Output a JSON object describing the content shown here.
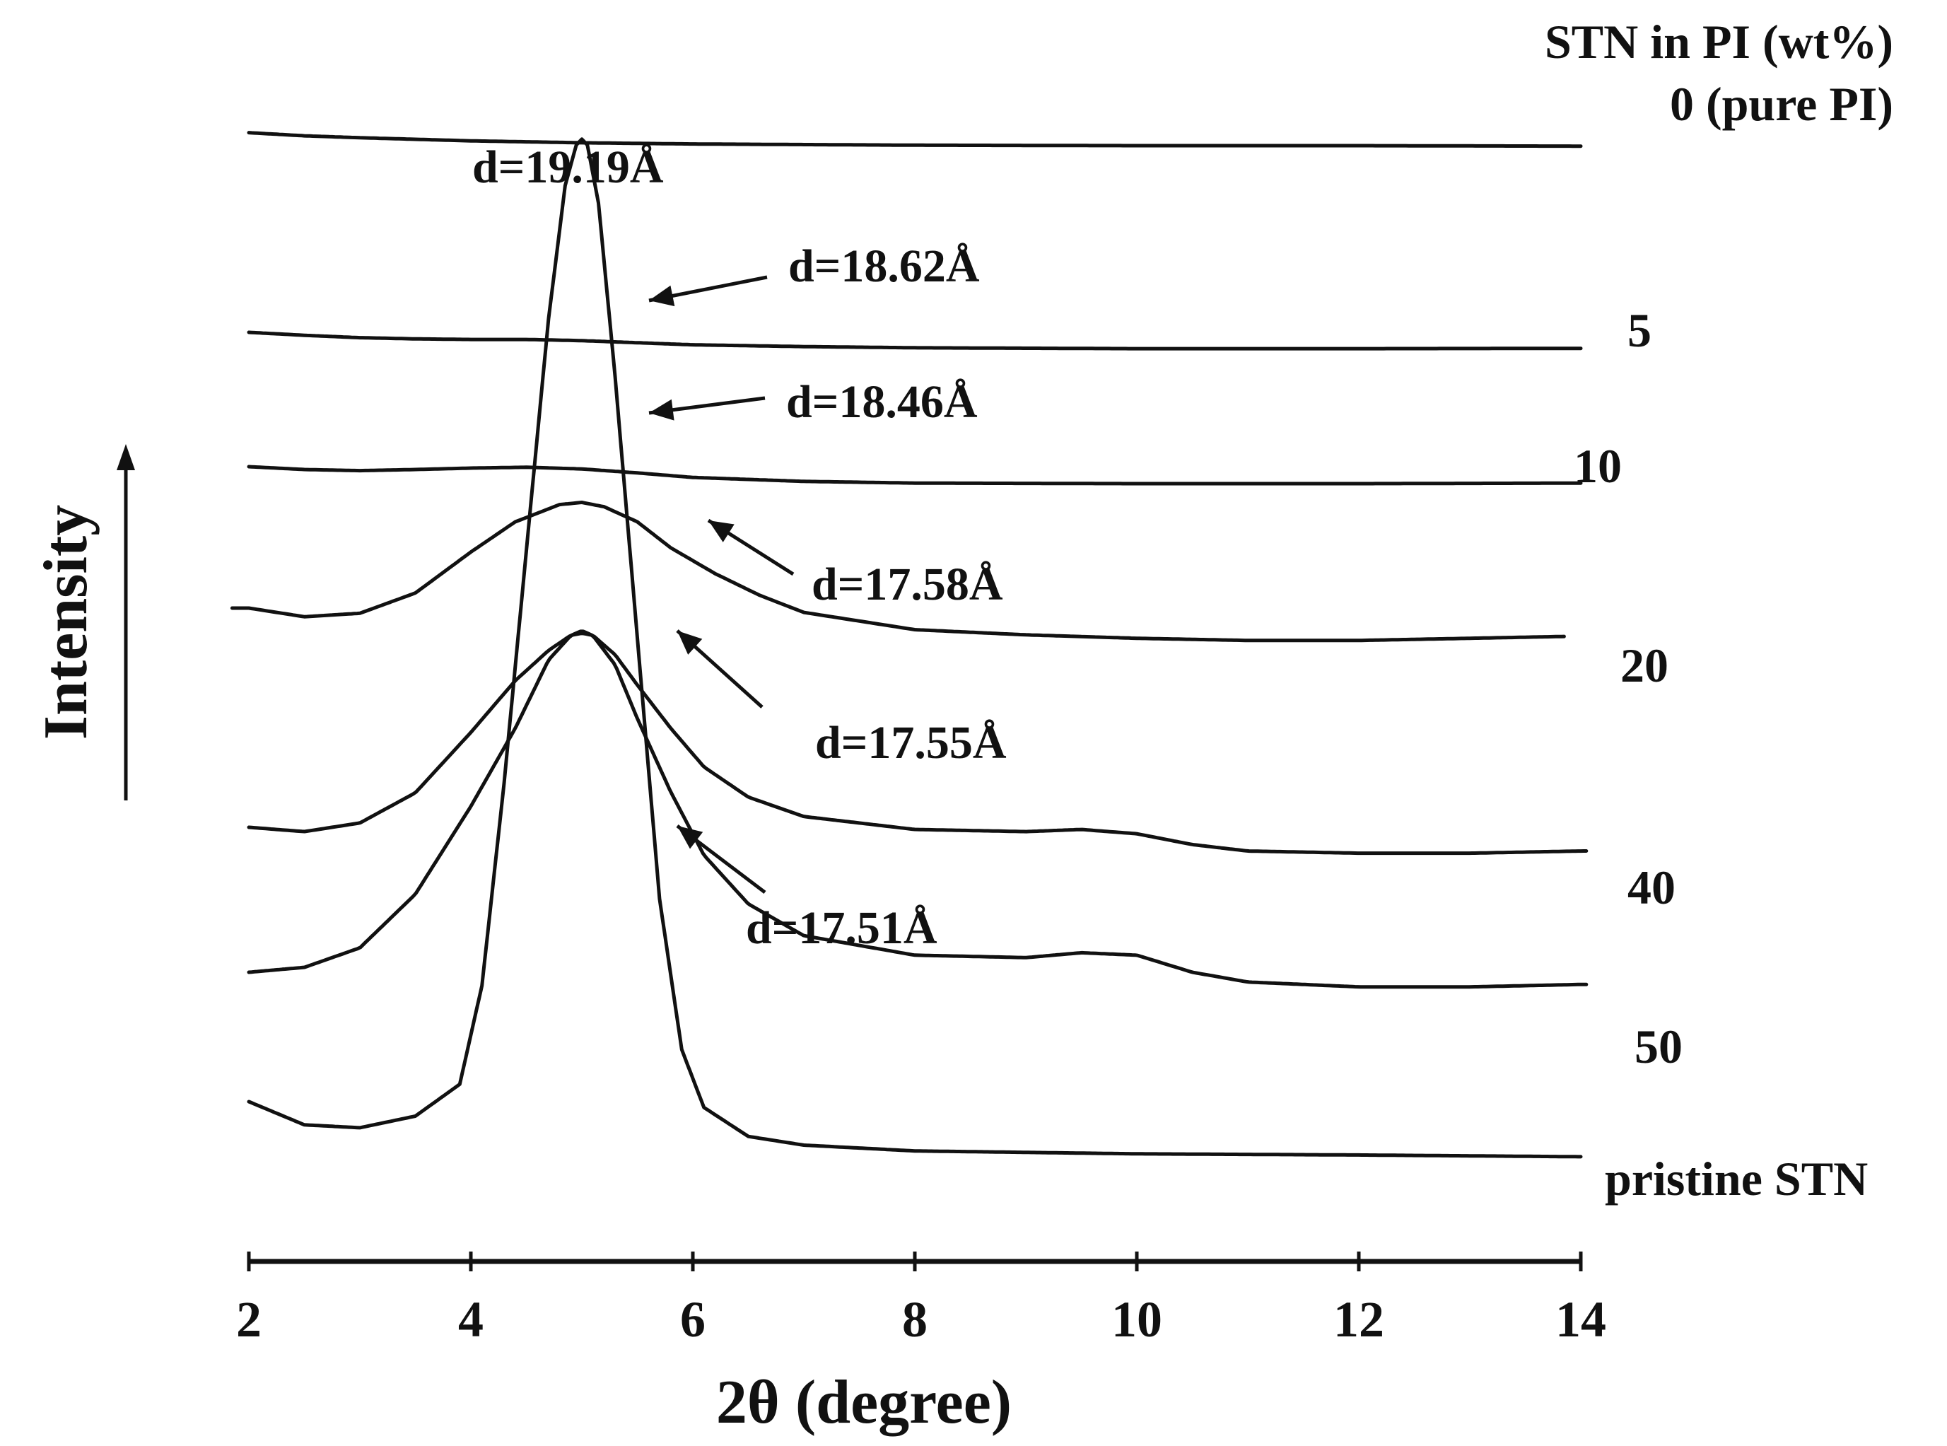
{
  "chart_data": {
    "type": "line",
    "title": "",
    "xlabel": "2θ (degree)",
    "ylabel": "Intensity",
    "xlim": [
      2,
      14
    ],
    "xticks": [
      2,
      4,
      6,
      8,
      10,
      12,
      14
    ],
    "grid": false,
    "legend_title": "STN in PI (wt%)",
    "series": [
      {
        "name": "0 (pure PI)",
        "x": [
          2.0,
          2.5,
          3,
          4,
          5,
          6,
          8,
          10,
          12,
          14
        ],
        "y": [
          1.04,
          0.91,
          0.83,
          0.7,
          0.62,
          0.57,
          0.52,
          0.5,
          0.5,
          0.48
        ]
      },
      {
        "name": "5",
        "x": [
          2.0,
          2.5,
          3,
          3.5,
          4,
          4.5,
          5,
          5.5,
          6,
          7,
          8,
          10,
          12,
          14
        ],
        "y": [
          1.0,
          0.9,
          0.82,
          0.78,
          0.76,
          0.76,
          0.72,
          0.65,
          0.58,
          0.52,
          0.48,
          0.45,
          0.45,
          0.46
        ]
      },
      {
        "name": "10",
        "x": [
          2.0,
          2.5,
          3,
          3.5,
          4,
          4.5,
          5,
          5.5,
          6,
          7,
          8,
          10,
          12,
          14
        ],
        "y": [
          1.0,
          0.9,
          0.86,
          0.9,
          0.95,
          0.98,
          0.92,
          0.78,
          0.62,
          0.48,
          0.42,
          0.4,
          0.4,
          0.42
        ]
      },
      {
        "name": "20",
        "x": [
          2.0,
          2.5,
          3.0,
          3.5,
          4.0,
          4.4,
          4.8,
          5.0,
          5.2,
          5.5,
          5.8,
          6.2,
          6.6,
          7.0,
          8.0,
          9.0,
          10.0,
          11.0,
          12.0,
          13.0,
          14.0
        ],
        "y": [
          1.0,
          0.8,
          0.88,
          1.35,
          2.3,
          3.0,
          3.4,
          3.45,
          3.35,
          3.0,
          2.4,
          1.8,
          1.3,
          0.9,
          0.5,
          0.38,
          0.3,
          0.25,
          0.25,
          0.3,
          0.35
        ]
      },
      {
        "name": "40",
        "x": [
          2.0,
          2.5,
          3.0,
          3.5,
          4.0,
          4.4,
          4.7,
          4.9,
          5.0,
          5.1,
          5.3,
          5.5,
          5.8,
          6.1,
          6.5,
          7.0,
          8.0,
          9.0,
          9.5,
          10.0,
          10.5,
          11.0,
          12.0,
          13.0,
          14.0
        ],
        "y": [
          1.0,
          0.9,
          1.1,
          1.8,
          3.2,
          4.4,
          5.1,
          5.45,
          5.5,
          5.45,
          5.0,
          4.3,
          3.3,
          2.4,
          1.7,
          1.25,
          0.95,
          0.9,
          0.95,
          0.85,
          0.6,
          0.45,
          0.4,
          0.4,
          0.45
        ]
      },
      {
        "name": "50",
        "x": [
          2.0,
          2.5,
          3.0,
          3.5,
          4.0,
          4.4,
          4.7,
          4.9,
          5.0,
          5.1,
          5.3,
          5.5,
          5.8,
          6.1,
          6.5,
          7.0,
          8.0,
          9.0,
          9.5,
          10.0,
          10.5,
          11.0,
          12.0,
          13.0,
          14.0
        ],
        "y": [
          1.0,
          1.1,
          1.5,
          2.6,
          4.4,
          6.0,
          7.4,
          7.9,
          8.0,
          7.9,
          7.3,
          6.2,
          4.7,
          3.4,
          2.4,
          1.75,
          1.35,
          1.3,
          1.4,
          1.35,
          1.0,
          0.8,
          0.7,
          0.7,
          0.75
        ]
      },
      {
        "name": "pristine STN",
        "x": [
          2.0,
          2.5,
          3.0,
          3.5,
          3.9,
          4.1,
          4.3,
          4.5,
          4.7,
          4.85,
          4.95,
          5.0,
          5.05,
          5.15,
          5.3,
          5.5,
          5.7,
          5.9,
          6.1,
          6.5,
          7.0,
          8.0,
          10.0,
          12.0,
          14.0
        ],
        "y": [
          1.0,
          0.6,
          0.55,
          0.75,
          1.3,
          3.0,
          6.5,
          10.5,
          14.5,
          16.8,
          17.5,
          17.6,
          17.5,
          16.5,
          13.5,
          9.0,
          4.5,
          1.9,
          0.9,
          0.4,
          0.25,
          0.15,
          0.1,
          0.08,
          0.05
        ]
      }
    ],
    "annotations": [
      {
        "text": "d=19.19Å",
        "series": "pristine STN",
        "x": 5.0
      },
      {
        "text": "d=18.62Å",
        "series": "5",
        "x": 5.7
      },
      {
        "text": "d=18.46Å",
        "series": "10",
        "x": 5.7
      },
      {
        "text": "d=17.58Å",
        "series": "20",
        "x": 6.2
      },
      {
        "text": "d=17.55Å",
        "series": "40",
        "x": 5.9
      },
      {
        "text": "d=17.51Å",
        "series": "50",
        "x": 5.8
      }
    ]
  }
}
